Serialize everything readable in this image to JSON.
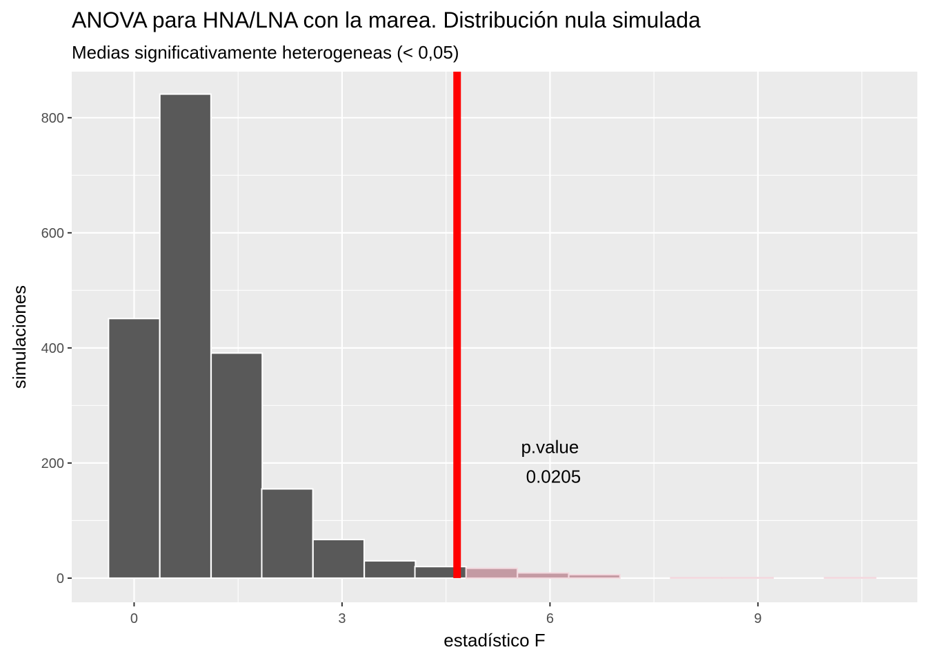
{
  "chart_data": {
    "type": "bar",
    "title": "ANOVA para HNA/LNA con la marea. Distribución nula simulada",
    "subtitle": "Medias significativamente heterogeneas (< 0,05)",
    "xlabel": "estadístico F",
    "ylabel": "simulaciones",
    "xlim": [
      -0.9,
      11.3
    ],
    "ylim": [
      -42,
      880
    ],
    "x_ticks": [
      0,
      3,
      6,
      9
    ],
    "x_tick_labels": [
      "0",
      "3",
      "6",
      "9"
    ],
    "y_ticks": [
      0,
      200,
      400,
      600,
      800
    ],
    "y_tick_labels": [
      "0",
      "200",
      "400",
      "600",
      "800"
    ],
    "grid": true,
    "bin_width": 0.7375,
    "bins": [
      {
        "x": 0.0,
        "count": 451,
        "extreme": false
      },
      {
        "x": 0.74,
        "count": 841,
        "extreme": false
      },
      {
        "x": 1.48,
        "count": 391,
        "extreme": false
      },
      {
        "x": 2.21,
        "count": 155,
        "extreme": false
      },
      {
        "x": 2.95,
        "count": 67,
        "extreme": false
      },
      {
        "x": 3.69,
        "count": 30,
        "extreme": false
      },
      {
        "x": 4.42,
        "count": 20,
        "extreme": false
      },
      {
        "x": 5.16,
        "count": 17,
        "extreme": true
      },
      {
        "x": 5.9,
        "count": 9,
        "extreme": true
      },
      {
        "x": 6.64,
        "count": 6,
        "extreme": true
      },
      {
        "x": 7.38,
        "count": 0,
        "extreme": true
      },
      {
        "x": 8.11,
        "count": 1,
        "extreme": true
      },
      {
        "x": 8.85,
        "count": 1,
        "extreme": true
      },
      {
        "x": 9.59,
        "count": 0,
        "extreme": true
      },
      {
        "x": 10.33,
        "count": 1,
        "extreme": true
      }
    ],
    "observed_f": 4.66,
    "annotation": {
      "label": "p.value",
      "value": "0.0205",
      "x": 6.0,
      "y": 210
    },
    "colors": {
      "panel": "#ebebeb",
      "grid": "#ffffff",
      "bar_fill": "#595959",
      "bar_outline": "#ffffff",
      "extreme_fill": "#c49aa3",
      "extreme_outline": "#f3d9df",
      "observed_line": "#ff0000"
    }
  }
}
